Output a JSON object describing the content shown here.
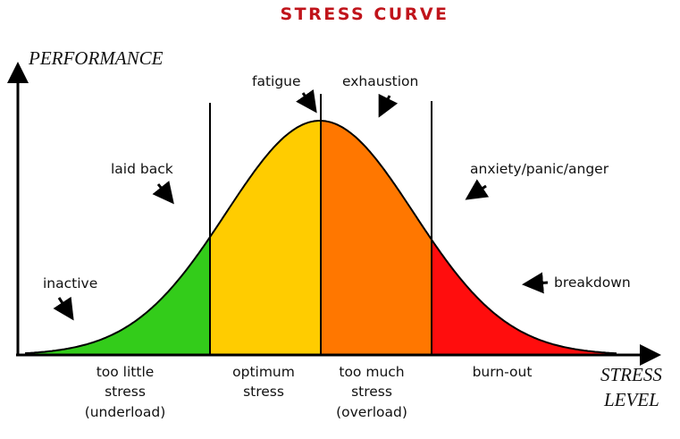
{
  "title": "STRESS CURVE",
  "axes": {
    "y_label": "PERFORMANCE",
    "x_label_line1": "STRESS",
    "x_label_line2": "LEVEL"
  },
  "zones": [
    {
      "lines": [
        "too little",
        "stress",
        "(underload)"
      ],
      "color": "#33cc1a"
    },
    {
      "lines": [
        "optimum",
        "stress"
      ],
      "color": "#ffcc00"
    },
    {
      "lines": [
        "too much",
        "stress",
        "(overload)"
      ],
      "color": "#ff7700"
    },
    {
      "lines": [
        "burn-out"
      ],
      "color": "#ff0d0d"
    }
  ],
  "annotations": {
    "inactive": "inactive",
    "laid_back": "laid back",
    "fatigue": "fatigue",
    "exhaustion": "exhaustion",
    "anxiety": "anxiety/panic/anger",
    "breakdown": "breakdown"
  },
  "colors": {
    "title": "#c0141b",
    "outline": "#000000"
  }
}
